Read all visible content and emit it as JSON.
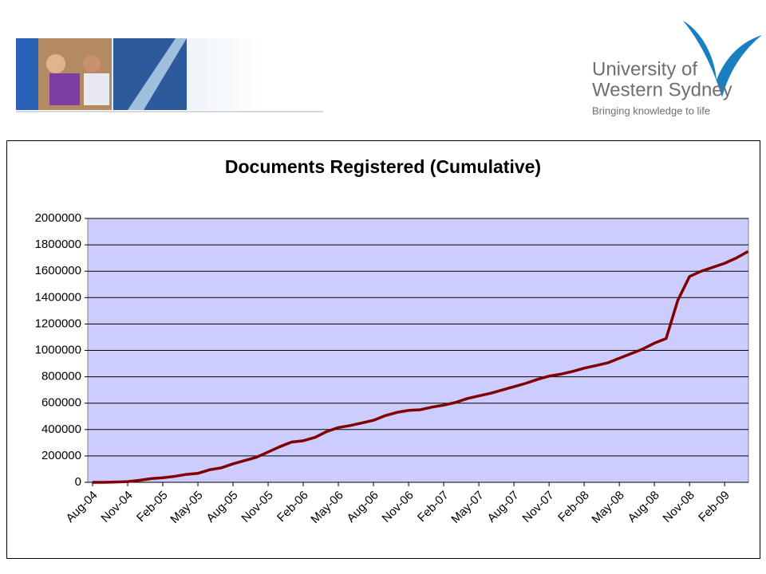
{
  "header": {
    "logo_line1": "University of",
    "logo_line2": "Western Sydney",
    "tagline": "Bringing knowledge to life"
  },
  "chart_data": {
    "type": "line",
    "title": "Documents Registered (Cumulative)",
    "categories": [
      "Aug-04",
      null,
      null,
      "Nov-04",
      null,
      null,
      "Feb-05",
      null,
      null,
      "May-05",
      null,
      null,
      "Aug-05",
      null,
      null,
      "Nov-05",
      null,
      null,
      "Feb-06",
      null,
      null,
      "May-06",
      null,
      null,
      "Aug-06",
      null,
      null,
      "Nov-06",
      null,
      null,
      "Feb-07",
      null,
      null,
      "May-07",
      null,
      null,
      "Aug-07",
      null,
      null,
      "Nov-07",
      null,
      null,
      "Feb-08",
      null,
      null,
      "May-08",
      null,
      null,
      "Aug-08",
      null,
      null,
      "Nov-08",
      null,
      null,
      "Feb-09",
      null,
      null
    ],
    "series": [
      {
        "color": "#800000",
        "values": [
          0,
          0,
          2000,
          5000,
          15000,
          28000,
          35000,
          45000,
          60000,
          68000,
          95000,
          110000,
          140000,
          165000,
          190000,
          230000,
          270000,
          305000,
          315000,
          340000,
          385000,
          415000,
          430000,
          450000,
          470000,
          505000,
          530000,
          545000,
          550000,
          570000,
          585000,
          605000,
          635000,
          655000,
          675000,
          700000,
          725000,
          750000,
          780000,
          805000,
          820000,
          840000,
          865000,
          885000,
          905000,
          940000,
          975000,
          1010000,
          1055000,
          1090000,
          1380000,
          1560000,
          1600000,
          1630000,
          1660000,
          1700000,
          1750000
        ]
      }
    ],
    "ylim": [
      0,
      2000000
    ],
    "yticks": [
      0,
      200000,
      400000,
      600000,
      800000,
      1000000,
      1200000,
      1400000,
      1600000,
      1800000,
      2000000
    ],
    "grid": true,
    "plot_background": "#ccccff"
  }
}
